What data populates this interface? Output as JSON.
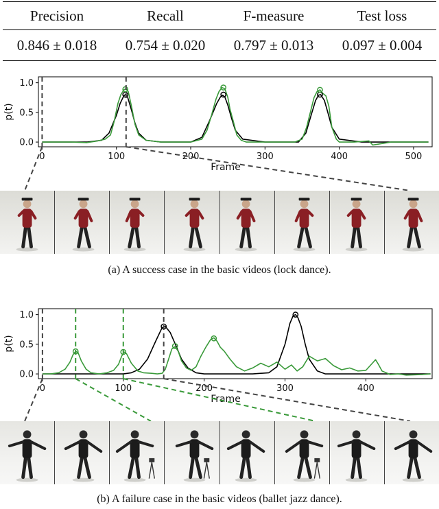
{
  "table": {
    "headers": [
      "Precision",
      "Recall",
      "F-measure",
      "Test loss"
    ],
    "values": [
      "0.846 ± 0.018",
      "0.754 ± 0.020",
      "0.797 ± 0.013",
      "0.097 ± 0.004"
    ]
  },
  "chart_data": [
    {
      "type": "line",
      "xlabel": "Frame",
      "ylabel": "p(t)",
      "xlim": [
        -5,
        525
      ],
      "ylim": [
        -0.08,
        1.1
      ],
      "xticks": [
        0,
        100,
        200,
        300,
        400,
        500
      ],
      "yticks": [
        0.0,
        0.5,
        1.0
      ],
      "grid": false,
      "series": [
        {
          "color": "#000000",
          "x": [
            0,
            20,
            40,
            60,
            80,
            90,
            100,
            105,
            110,
            112,
            115,
            120,
            125,
            130,
            140,
            160,
            200,
            215,
            225,
            235,
            240,
            243,
            246,
            250,
            255,
            260,
            270,
            300,
            345,
            355,
            362,
            368,
            372,
            375,
            380,
            385,
            390,
            400,
            430,
            470,
            520
          ],
          "y": [
            0,
            0,
            0,
            0,
            0.03,
            0.15,
            0.45,
            0.65,
            0.78,
            0.8,
            0.76,
            0.55,
            0.32,
            0.15,
            0.03,
            0,
            0,
            0.08,
            0.35,
            0.65,
            0.76,
            0.79,
            0.76,
            0.62,
            0.4,
            0.2,
            0.05,
            0,
            0,
            0.15,
            0.45,
            0.7,
            0.79,
            0.8,
            0.7,
            0.48,
            0.25,
            0.05,
            0,
            0,
            0
          ]
        },
        {
          "color": "#3a9a3a",
          "x": [
            0,
            20,
            40,
            60,
            75,
            85,
            92,
            97,
            102,
            106,
            110,
            113,
            116,
            120,
            125,
            130,
            140,
            160,
            200,
            215,
            222,
            228,
            234,
            238,
            242,
            246,
            250,
            253,
            258,
            262,
            268,
            275,
            300,
            340,
            350,
            356,
            362,
            366,
            370,
            374,
            378,
            382,
            386,
            390,
            396,
            400,
            420,
            440,
            445,
            470,
            520
          ],
          "y": [
            0,
            0,
            0,
            -0.01,
            0.02,
            0.05,
            0.12,
            0.35,
            0.65,
            0.8,
            0.88,
            0.9,
            0.85,
            0.62,
            0.3,
            0.12,
            0.03,
            0,
            0,
            0.05,
            0.2,
            0.45,
            0.72,
            0.85,
            0.92,
            0.9,
            0.75,
            0.55,
            0.32,
            0.12,
            0.03,
            0,
            0,
            0,
            0.05,
            0.25,
            0.55,
            0.75,
            0.85,
            0.88,
            0.82,
            0.78,
            0.6,
            0.25,
            0.05,
            0,
            0,
            0.02,
            -0.05,
            0,
            0
          ]
        }
      ],
      "markers": [
        {
          "series": 0,
          "x": 112,
          "y": 0.8
        },
        {
          "series": 1,
          "x": 112,
          "y": 0.89
        },
        {
          "series": 0,
          "x": 244,
          "y": 0.8
        },
        {
          "series": 1,
          "x": 244,
          "y": 0.92
        },
        {
          "series": 0,
          "x": 374,
          "y": 0.8
        },
        {
          "series": 1,
          "x": 374,
          "y": 0.88
        }
      ],
      "vlines": [
        {
          "x": 0,
          "color": "#444444"
        },
        {
          "x": 113,
          "color": "#444444"
        }
      ]
    },
    {
      "type": "line",
      "xlabel": "Frame",
      "ylabel": "p(t)",
      "xlim": [
        -5,
        482
      ],
      "ylim": [
        -0.08,
        1.1
      ],
      "xticks": [
        0,
        100,
        200,
        300,
        400
      ],
      "yticks": [
        0.0,
        0.5,
        1.0
      ],
      "grid": false,
      "series": [
        {
          "color": "#000000",
          "x": [
            0,
            50,
            100,
            110,
            120,
            130,
            140,
            148,
            152,
            158,
            165,
            172,
            180,
            190,
            200,
            260,
            280,
            290,
            300,
            306,
            310,
            313,
            316,
            320,
            325,
            330,
            340,
            350,
            380,
            480
          ],
          "y": [
            0,
            0,
            0,
            0.02,
            0.08,
            0.25,
            0.55,
            0.78,
            0.8,
            0.7,
            0.48,
            0.25,
            0.1,
            0.02,
            0,
            0,
            0.02,
            0.12,
            0.5,
            0.85,
            0.98,
            1.0,
            0.95,
            0.8,
            0.5,
            0.25,
            0.05,
            0,
            0,
            0
          ]
        },
        {
          "color": "#3a9a3a",
          "x": [
            0,
            10,
            20,
            28,
            34,
            38,
            41,
            44,
            48,
            54,
            60,
            70,
            80,
            88,
            94,
            98,
            101,
            104,
            110,
            118,
            125,
            135,
            142,
            148,
            152,
            156,
            160,
            164,
            168,
            172,
            178,
            184,
            190,
            196,
            202,
            208,
            212,
            216,
            220,
            225,
            232,
            240,
            250,
            260,
            270,
            280,
            290,
            300,
            308,
            315,
            322,
            330,
            340,
            350,
            360,
            370,
            380,
            390,
            400,
            408,
            412,
            416,
            420,
            425,
            430,
            440,
            450,
            470,
            480
          ],
          "y": [
            0,
            0,
            0.02,
            0.08,
            0.2,
            0.33,
            0.38,
            0.36,
            0.22,
            0.08,
            0.02,
            0,
            0.02,
            0.06,
            0.16,
            0.3,
            0.37,
            0.34,
            0.18,
            0.05,
            0.02,
            0.01,
            0,
            0.01,
            0.08,
            0.25,
            0.42,
            0.46,
            0.38,
            0.22,
            0.1,
            0.06,
            0.12,
            0.3,
            0.45,
            0.58,
            0.61,
            0.55,
            0.45,
            0.38,
            0.25,
            0.12,
            0.05,
            0.1,
            0.18,
            0.12,
            0.2,
            0.08,
            0.15,
            0.05,
            0.12,
            0.3,
            0.22,
            0.26,
            0.14,
            0.07,
            0.1,
            0.05,
            0.06,
            0.18,
            0.24,
            0.15,
            0.05,
            0.02,
            -0.01,
            0,
            -0.02,
            -0.01,
            0
          ]
        }
      ],
      "markers": [
        {
          "series": 1,
          "x": 41,
          "y": 0.38
        },
        {
          "series": 1,
          "x": 100,
          "y": 0.37
        },
        {
          "series": 0,
          "x": 150,
          "y": 0.8
        },
        {
          "series": 1,
          "x": 164,
          "y": 0.47
        },
        {
          "series": 1,
          "x": 212,
          "y": 0.6
        },
        {
          "series": 0,
          "x": 313,
          "y": 1.0
        }
      ],
      "vlines": [
        {
          "x": 0,
          "color": "#444444"
        },
        {
          "x": 41,
          "color": "#3a9a3a"
        },
        {
          "x": 100,
          "color": "#3a9a3a"
        },
        {
          "x": 150,
          "color": "#444444"
        }
      ]
    }
  ],
  "figure_a": {
    "caption": "(a)  A success case in the basic videos (lock dance)."
  },
  "figure_b": {
    "caption": "(b)  A failure case in the basic videos (ballet jazz dance)."
  }
}
